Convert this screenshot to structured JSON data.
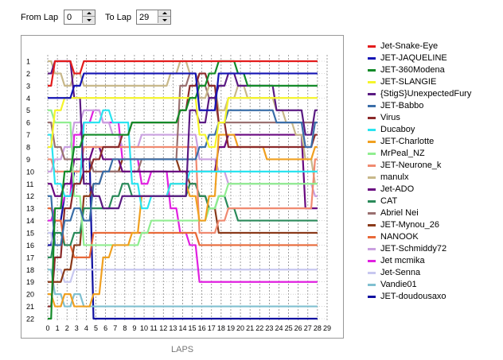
{
  "controls": {
    "from_label": "From Lap",
    "from_value": "0",
    "to_label": "To Lap",
    "to_value": "29"
  },
  "chart_data": {
    "type": "line",
    "xlabel": "LAPS",
    "x_ticks": [
      "0",
      "1",
      "2",
      "3",
      "4",
      "5",
      "6",
      "7",
      "8",
      "9",
      "10",
      "11",
      "12",
      "13",
      "14",
      "15",
      "16",
      "17",
      "18",
      "19",
      "20",
      "21",
      "22",
      "23",
      "24",
      "25",
      "26",
      "27",
      "28",
      "29"
    ],
    "y_ticks": [
      "1",
      "2",
      "3",
      "4",
      "5",
      "6",
      "7",
      "8",
      "9",
      "10",
      "11",
      "12",
      "13",
      "14",
      "15",
      "16",
      "17",
      "18",
      "19",
      "20",
      "21",
      "22"
    ],
    "xlim": [
      0,
      29
    ],
    "ylim": [
      1,
      22
    ],
    "y_inverted": true,
    "grid": true,
    "legend_position": "right",
    "series": [
      {
        "name": "Jet-Snake-Eye",
        "color": "#e31c1c",
        "values": [
          3,
          1,
          1,
          2,
          1,
          1,
          1,
          1,
          1,
          1,
          1,
          1,
          1,
          1,
          1,
          1,
          1,
          1,
          1,
          1,
          1,
          1,
          1,
          1,
          1,
          1,
          1,
          1,
          1
        ]
      },
      {
        "name": "JET-JAQUELINE",
        "color": "#1414b4",
        "values": [
          4,
          4,
          4,
          3,
          2,
          2,
          2,
          2,
          2,
          2,
          2,
          2,
          2,
          2,
          2,
          2,
          5,
          5,
          2,
          2,
          2,
          2,
          2,
          2,
          2,
          2,
          2,
          2,
          2
        ]
      },
      {
        "name": "JET-360Modena",
        "color": "#128a28",
        "values": [
          22,
          13,
          10,
          8,
          7,
          7,
          7,
          7,
          7,
          6,
          6,
          6,
          6,
          6,
          5,
          4,
          3,
          2,
          1,
          1,
          2,
          3,
          3,
          3,
          3,
          3,
          3,
          3,
          3
        ]
      },
      {
        "name": "JET-SLANGIE",
        "color": "#f5f52a",
        "values": [
          8,
          5,
          4,
          4,
          4,
          4,
          4,
          4,
          4,
          4,
          4,
          4,
          4,
          4,
          4,
          4,
          7,
          8,
          6,
          4,
          4,
          4,
          4,
          4,
          4,
          4,
          4,
          4,
          4
        ]
      },
      {
        "name": "{StigS}UnexpectedFury",
        "color": "#5a1a82",
        "values": [
          2,
          1,
          1,
          4,
          11,
          12,
          13,
          13,
          12,
          12,
          12,
          12,
          12,
          12,
          12,
          5,
          6,
          4,
          3,
          2,
          3,
          3,
          3,
          3,
          5,
          5,
          5,
          7,
          5
        ]
      },
      {
        "name": "JET-Babbo",
        "color": "#3a6ea8",
        "values": [
          12,
          16,
          14,
          13,
          14,
          11,
          10,
          9,
          9,
          9,
          9,
          9,
          9,
          9,
          9,
          9,
          8,
          7,
          6,
          5,
          5,
          5,
          5,
          5,
          6,
          6,
          6,
          8,
          6
        ]
      },
      {
        "name": "Virus",
        "color": "#8b2a2a",
        "values": [
          21,
          17,
          13,
          11,
          10,
          9,
          8,
          8,
          7,
          6,
          6,
          6,
          6,
          6,
          5,
          3,
          2,
          3,
          6,
          8,
          8,
          8,
          8,
          8,
          8,
          8,
          8,
          8,
          7
        ]
      },
      {
        "name": "Ducaboy",
        "color": "#2ae4f0",
        "values": [
          7,
          11,
          12,
          11,
          6,
          6,
          5,
          6,
          6,
          11,
          13,
          12,
          12,
          11,
          11,
          10,
          10,
          10,
          10,
          10,
          10,
          10,
          10,
          10,
          10,
          10,
          10,
          10,
          10
        ]
      },
      {
        "name": "JET-Charlotte",
        "color": "#f0a020",
        "values": [
          20,
          21,
          20,
          21,
          21,
          20,
          17,
          16,
          16,
          15,
          12,
          12,
          12,
          11,
          11,
          12,
          14,
          12,
          7,
          7,
          8,
          8,
          8,
          9,
          9,
          9,
          9,
          9,
          8
        ]
      },
      {
        "name": "MrPeal_NZ",
        "color": "#90ee90",
        "values": [
          5,
          6,
          6,
          12,
          16,
          16,
          16,
          16,
          16,
          16,
          15,
          14,
          14,
          14,
          14,
          14,
          14,
          13,
          12,
          11,
          11,
          11,
          11,
          11,
          11,
          11,
          11,
          11,
          11
        ]
      },
      {
        "name": "JET-Neurone_k",
        "color": "#f08a70",
        "values": [
          9,
          10,
          10,
          10,
          8,
          8,
          8,
          8,
          8,
          8,
          8,
          8,
          8,
          8,
          8,
          8,
          15,
          15,
          14,
          13,
          13,
          13,
          13,
          13,
          13,
          13,
          13,
          13,
          9
        ]
      },
      {
        "name": "manulx",
        "color": "#c8b88a",
        "values": [
          1,
          2,
          3,
          2,
          3,
          3,
          3,
          3,
          3,
          3,
          3,
          3,
          3,
          2,
          1,
          2,
          4,
          3,
          5,
          4,
          3,
          4,
          4,
          4,
          5,
          6,
          7,
          9,
          11
        ]
      },
      {
        "name": "Jet-ADO",
        "color": "#6a0a80",
        "values": [
          11,
          12,
          11,
          9,
          9,
          8,
          9,
          9,
          10,
          10,
          10,
          10,
          10,
          10,
          10,
          10,
          10,
          10,
          8,
          7,
          7,
          7,
          7,
          7,
          7,
          7,
          7,
          13,
          13
        ]
      },
      {
        "name": "CAT",
        "color": "#2a8a5a",
        "values": [
          17,
          15,
          16,
          15,
          13,
          13,
          13,
          12,
          11,
          12,
          12,
          12,
          12,
          12,
          12,
          11,
          12,
          13,
          12,
          13,
          14,
          14,
          14,
          14,
          14,
          14,
          14,
          14,
          14
        ]
      },
      {
        "name": "Abriel Nei",
        "color": "#9a7070",
        "values": [
          6,
          8,
          9,
          9,
          9,
          10,
          10,
          10,
          10,
          10,
          9,
          9,
          9,
          9,
          3,
          2,
          3,
          4,
          6,
          6,
          6,
          6,
          6,
          6,
          6,
          6,
          6,
          6,
          6
        ]
      },
      {
        "name": "JET-Mynou_26",
        "color": "#8a3a1a",
        "values": [
          19,
          19,
          18,
          16,
          12,
          11,
          10,
          10,
          9,
          9,
          9,
          9,
          9,
          9,
          10,
          11,
          12,
          13,
          15,
          15,
          15,
          15,
          15,
          15,
          15,
          15,
          15,
          15,
          15
        ]
      },
      {
        "name": "NANOOK",
        "color": "#e86a3a",
        "values": [
          13,
          14,
          16,
          17,
          17,
          15,
          15,
          15,
          15,
          15,
          15,
          15,
          15,
          15,
          15,
          15,
          16,
          16,
          16,
          16,
          16,
          16,
          16,
          16,
          16,
          16,
          16,
          16,
          16
        ]
      },
      {
        "name": "JET-Schmiddy72",
        "color": "#caa0e0",
        "values": [
          10,
          9,
          8,
          6,
          5,
          5,
          6,
          7,
          8,
          8,
          7,
          7,
          7,
          7,
          7,
          7,
          9,
          9,
          10,
          11,
          11,
          11,
          11,
          11,
          11,
          11,
          11,
          11,
          12
        ]
      },
      {
        "name": "Jet mcmika",
        "color": "#e020e0",
        "values": [
          14,
          13,
          12,
          7,
          6,
          5,
          6,
          6,
          9,
          9,
          11,
          10,
          10,
          13,
          15,
          16,
          19,
          19,
          19,
          19,
          19,
          19,
          19,
          19,
          19,
          19,
          19,
          19,
          19
        ]
      },
      {
        "name": "Jet-Senna",
        "color": "#c8c8f0",
        "values": [
          15,
          18,
          19,
          18,
          18,
          18,
          18,
          18,
          18,
          18,
          18,
          18,
          18,
          18,
          18,
          18,
          18,
          18,
          18,
          18,
          18,
          18,
          18,
          18,
          18,
          18,
          18,
          18,
          18
        ]
      },
      {
        "name": "Vandie01",
        "color": "#80c0d0",
        "values": [
          18,
          20,
          21,
          20,
          21,
          21,
          21,
          21,
          21,
          21,
          21,
          21,
          21,
          21,
          21,
          21,
          21,
          21,
          21,
          21,
          21,
          21,
          21,
          21,
          21,
          21,
          21,
          21,
          21
        ]
      },
      {
        "name": "JET-doudousaxo",
        "color": "#1010a0",
        "values": [
          16,
          14,
          12,
          10,
          9,
          22,
          22,
          22,
          22,
          22,
          22,
          22,
          22,
          22,
          22,
          22,
          22,
          22,
          22,
          22,
          22,
          22,
          22,
          22,
          22,
          22,
          22,
          22,
          22
        ]
      }
    ]
  }
}
